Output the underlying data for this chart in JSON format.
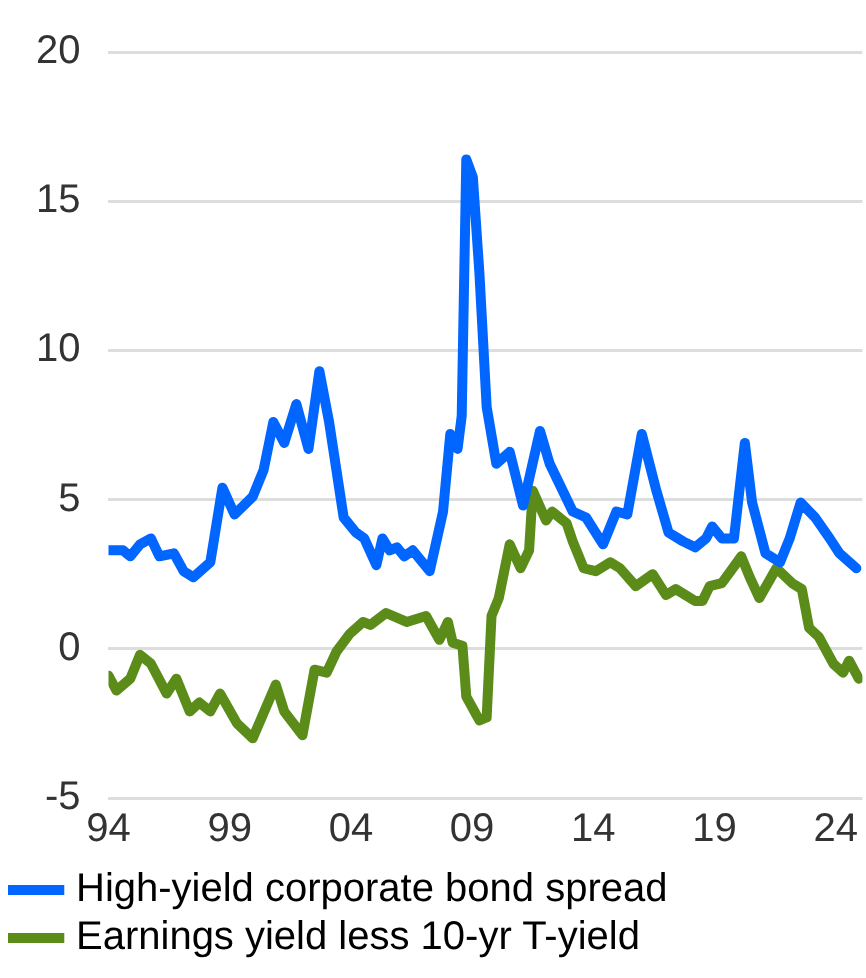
{
  "chart_data": {
    "type": "line",
    "ylim": [
      -5,
      20
    ],
    "yticks": [
      -5,
      0,
      5,
      10,
      15,
      20
    ],
    "xlim": [
      1994,
      2025.1
    ],
    "xticks": [
      {
        "value": 1994,
        "label": "94"
      },
      {
        "value": 1999,
        "label": "99"
      },
      {
        "value": 2004,
        "label": "04"
      },
      {
        "value": 2009,
        "label": "09"
      },
      {
        "value": 2014,
        "label": "14"
      },
      {
        "value": 2019,
        "label": "19"
      },
      {
        "value": 2024,
        "label": "24"
      }
    ],
    "grid": "y",
    "legend": "bottom",
    "marker": "none",
    "line_style": "solid",
    "series": [
      {
        "name": "High-yield corporate bond spread",
        "color": "#0066ff",
        "x": [
          1994,
          1994.6,
          1994.9,
          1995.3,
          1995.75,
          1996.1,
          1996.7,
          1997.1,
          1997.5,
          1998.2,
          1998.7,
          1999.2,
          1999.95,
          2000.4,
          2000.8,
          2001.25,
          2001.75,
          2002.25,
          2002.7,
          2003.1,
          2003.7,
          2004.2,
          2004.55,
          2005.05,
          2005.3,
          2005.6,
          2005.9,
          2006.2,
          2006.55,
          2007.25,
          2007.8,
          2008.1,
          2008.4,
          2008.57,
          2008.76,
          2009.03,
          2009.3,
          2009.6,
          2010,
          2010.55,
          2011.1,
          2011.8,
          2012.2,
          2013.15,
          2013.7,
          2014.4,
          2014.95,
          2015.4,
          2016,
          2016.6,
          2017.1,
          2017.7,
          2018.2,
          2018.65,
          2018.9,
          2019.3,
          2019.8,
          2020.25,
          2020.55,
          2021.1,
          2021.7,
          2022.1,
          2022.55,
          2023.15,
          2023.75,
          2024.15,
          2024.85
        ],
        "values": [
          3.3,
          3.3,
          3.1,
          3.5,
          3.7,
          3.1,
          3.2,
          2.6,
          2.4,
          2.9,
          5.4,
          4.5,
          5.1,
          6,
          7.6,
          6.9,
          8.2,
          6.7,
          9.3,
          7.6,
          4.4,
          3.9,
          3.7,
          2.8,
          3.7,
          3.3,
          3.4,
          3.1,
          3.3,
          2.6,
          4.6,
          7.2,
          6.7,
          7.8,
          16.4,
          15.8,
          12.6,
          8.1,
          6.2,
          6.6,
          4.8,
          7.3,
          6.2,
          4.6,
          4.4,
          3.5,
          4.6,
          4.5,
          7.2,
          5.3,
          3.9,
          3.6,
          3.4,
          3.7,
          4.1,
          3.7,
          3.7,
          6.9,
          4.9,
          3.2,
          2.9,
          3.7,
          4.9,
          4.4,
          3.7,
          3.2,
          2.7
        ]
      },
      {
        "name": "Earnings yield less 10-yr T-yield",
        "color": "#5b8c1a",
        "x": [
          1994,
          1994.33,
          1994.9,
          1995.3,
          1995.75,
          1996.4,
          1996.8,
          1997.35,
          1997.75,
          1998.2,
          1998.6,
          1999.3,
          1999.95,
          2000.9,
          2001.25,
          2002,
          2002.5,
          2003,
          2003.4,
          2003.95,
          2004.5,
          2004.8,
          2005.45,
          2006.3,
          2007.1,
          2007.65,
          2008,
          2008.2,
          2008.6,
          2008.76,
          2009.3,
          2009.6,
          2009.8,
          2010.1,
          2010.55,
          2011,
          2011.35,
          2011.5,
          2012.05,
          2012.3,
          2012.9,
          2013.15,
          2013.6,
          2014.1,
          2014.7,
          2015.1,
          2015.75,
          2016.45,
          2017,
          2017.4,
          2018.2,
          2018.5,
          2018.8,
          2019.3,
          2019.75,
          2020.1,
          2020.45,
          2020.85,
          2021.55,
          2022.2,
          2022.6,
          2022.9,
          2023.3,
          2023.9,
          2024.3,
          2024.55,
          2024.95
        ],
        "values": [
          -0.9,
          -1.4,
          -1,
          -0.2,
          -0.5,
          -1.5,
          -1,
          -2.1,
          -1.8,
          -2.1,
          -1.5,
          -2.5,
          -3,
          -1.2,
          -2.1,
          -2.9,
          -0.7,
          -0.8,
          -0.1,
          0.5,
          0.9,
          0.8,
          1.2,
          0.9,
          1.1,
          0.3,
          0.9,
          0.2,
          0.1,
          -1.6,
          -2.4,
          -2.3,
          1.1,
          1.7,
          3.5,
          2.7,
          3.3,
          5.3,
          4.3,
          4.6,
          4.2,
          3.6,
          2.7,
          2.6,
          2.9,
          2.7,
          2.1,
          2.5,
          1.8,
          2,
          1.6,
          1.6,
          2.1,
          2.2,
          2.7,
          3.1,
          2.4,
          1.7,
          2.7,
          2.2,
          2,
          0.7,
          0.4,
          -0.5,
          -0.8,
          -0.4,
          -1
        ]
      }
    ]
  }
}
